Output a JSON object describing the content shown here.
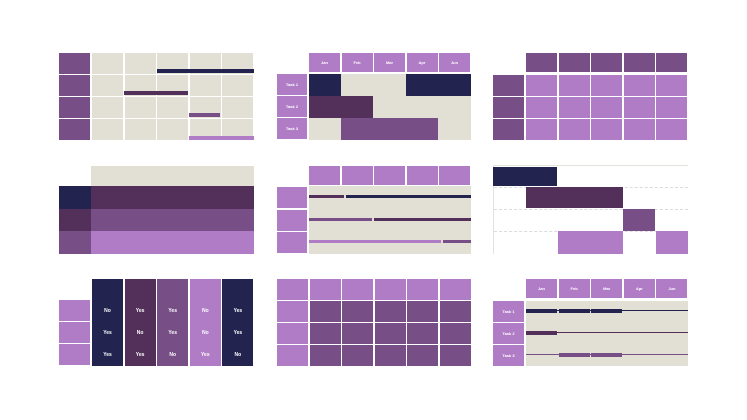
{
  "colors": {
    "navy": "#22234f",
    "plum": "#53305a",
    "mid": "#774f86",
    "light": "#b07cc6",
    "beige": "#e2dfd4",
    "axis": "#e4e2dc"
  },
  "months": [
    "Jan",
    "Feb",
    "Mar",
    "Apr",
    "Jun"
  ],
  "tasks": [
    "Task 1",
    "Task 2",
    "Task 3"
  ],
  "yes_no_table": {
    "columns": [
      [
        "No",
        "Yes",
        "Yes"
      ],
      [
        "Yes",
        "No",
        "Yes"
      ],
      [
        "Yes",
        "Yes",
        "No"
      ],
      [
        "No",
        "No",
        "Yes"
      ],
      [
        "Yes",
        "Yes",
        "No"
      ]
    ]
  }
}
